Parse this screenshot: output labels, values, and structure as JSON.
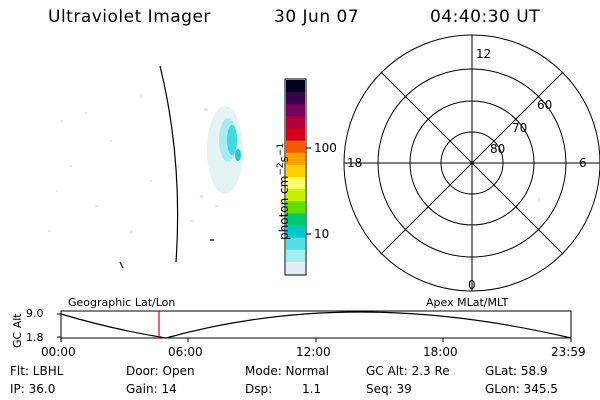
{
  "header": {
    "instrument": "Ultraviolet Imager",
    "date": "30 Jun 07",
    "time": "04:40:30 UT"
  },
  "colorbar": {
    "unit_prefix": "photon cm",
    "unit_exp1": "−2",
    "unit_mid": "s",
    "unit_exp2": "−1",
    "tick_100": "100",
    "tick_10": "10",
    "colors": [
      "#000020",
      "#3a0050",
      "#7a0060",
      "#b0003a",
      "#d40018",
      "#f05a00",
      "#ffa000",
      "#ffd000",
      "#ffff60",
      "#c8f000",
      "#60e000",
      "#00c870",
      "#00c8c8",
      "#50e0e8",
      "#a8ecf0",
      "#e0f0f4"
    ]
  },
  "polar": {
    "mlt_12": "12",
    "mlt_18": "18",
    "mlt_6": "6",
    "mlt_0": "0",
    "lat_60": "60",
    "lat_70": "70",
    "lat_80": "80"
  },
  "timeline": {
    "ylabel": "GC Alt",
    "y_top": "9.0",
    "y_bottom": "1.8",
    "left_label": "Geographic Lat/Lon",
    "right_label": "Apex  MLat/MLT",
    "ticks": [
      "00:00",
      "06:00",
      "12:00",
      "18:00",
      "23:59"
    ]
  },
  "status": {
    "filter": "Flt: LBHL",
    "ip": "IP: 36.0",
    "door": "Door: Open",
    "gain": "Gain: 14",
    "mode": "Mode: Normal",
    "dsp_label": "Dsp:",
    "dsp_value": "1.1",
    "gc_alt": "GC Alt: 2.3 Re",
    "seq": "Seq: 39",
    "glat": "GLat:  58.9",
    "glon": "GLon: 345.5"
  }
}
